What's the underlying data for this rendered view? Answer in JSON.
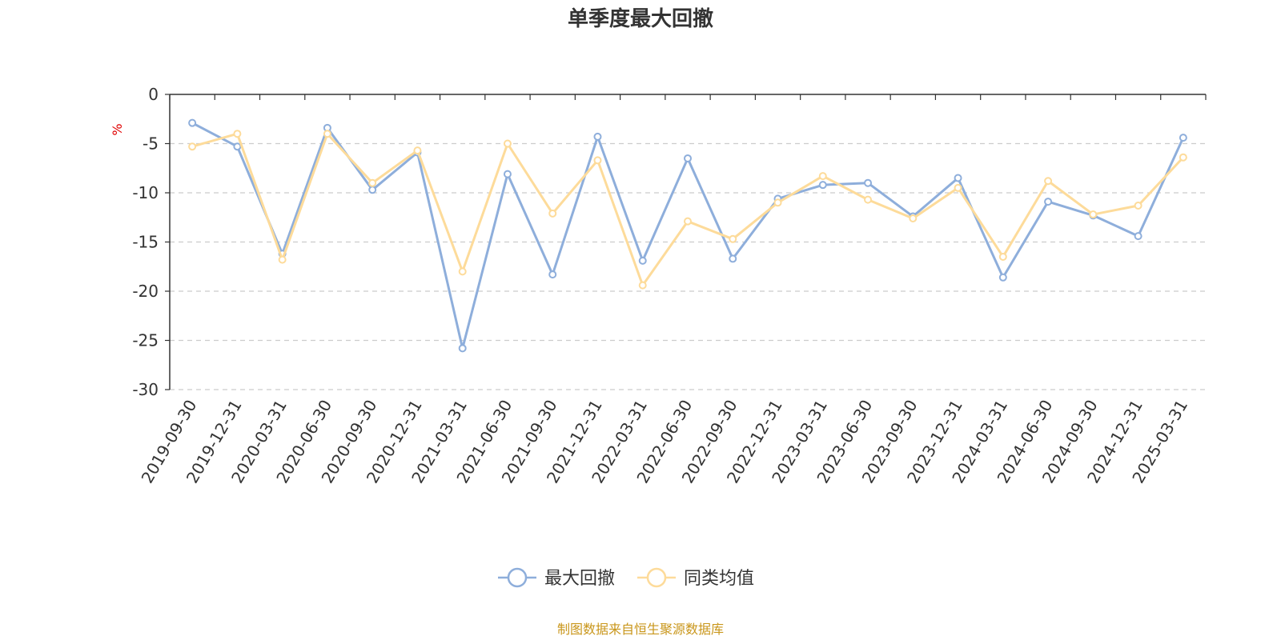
{
  "chart_data": {
    "type": "line",
    "title": "单季度最大回撤",
    "ylabel": "%",
    "ylim": [
      -30,
      0
    ],
    "yticks": [
      0,
      -5,
      -10,
      -15,
      -20,
      -25,
      -30
    ],
    "grid": true,
    "legend_position": "bottom",
    "categories": [
      "2019-09-30",
      "2019-12-31",
      "2020-03-31",
      "2020-06-30",
      "2020-09-30",
      "2020-12-31",
      "2021-03-31",
      "2021-06-30",
      "2021-09-30",
      "2021-12-31",
      "2022-03-31",
      "2022-06-30",
      "2022-09-30",
      "2022-12-31",
      "2023-03-31",
      "2023-06-30",
      "2023-09-30",
      "2023-12-31",
      "2024-03-31",
      "2024-06-30",
      "2024-09-30",
      "2024-12-31",
      "2025-03-31"
    ],
    "series": [
      {
        "name": "最大回撤",
        "color": "#8eaedb",
        "values": [
          -2.9,
          -5.3,
          -16.2,
          -3.4,
          -9.7,
          -5.9,
          -25.8,
          -8.1,
          -18.3,
          -4.3,
          -16.9,
          -6.5,
          -16.7,
          -10.6,
          -9.2,
          -9.0,
          -12.4,
          -8.5,
          -18.6,
          -10.9,
          -12.3,
          -14.4,
          -4.4
        ]
      },
      {
        "name": "同类均值",
        "color": "#fddb9a",
        "values": [
          -5.3,
          -4.0,
          -16.8,
          -4.0,
          -9.0,
          -5.7,
          -18.0,
          -5.0,
          -12.1,
          -6.7,
          -19.4,
          -12.9,
          -14.7,
          -11.0,
          -8.3,
          -10.7,
          -12.6,
          -9.5,
          -16.5,
          -8.8,
          -12.2,
          -11.3,
          -6.4
        ]
      }
    ]
  },
  "source_note": "制图数据来自恒生聚源数据库"
}
